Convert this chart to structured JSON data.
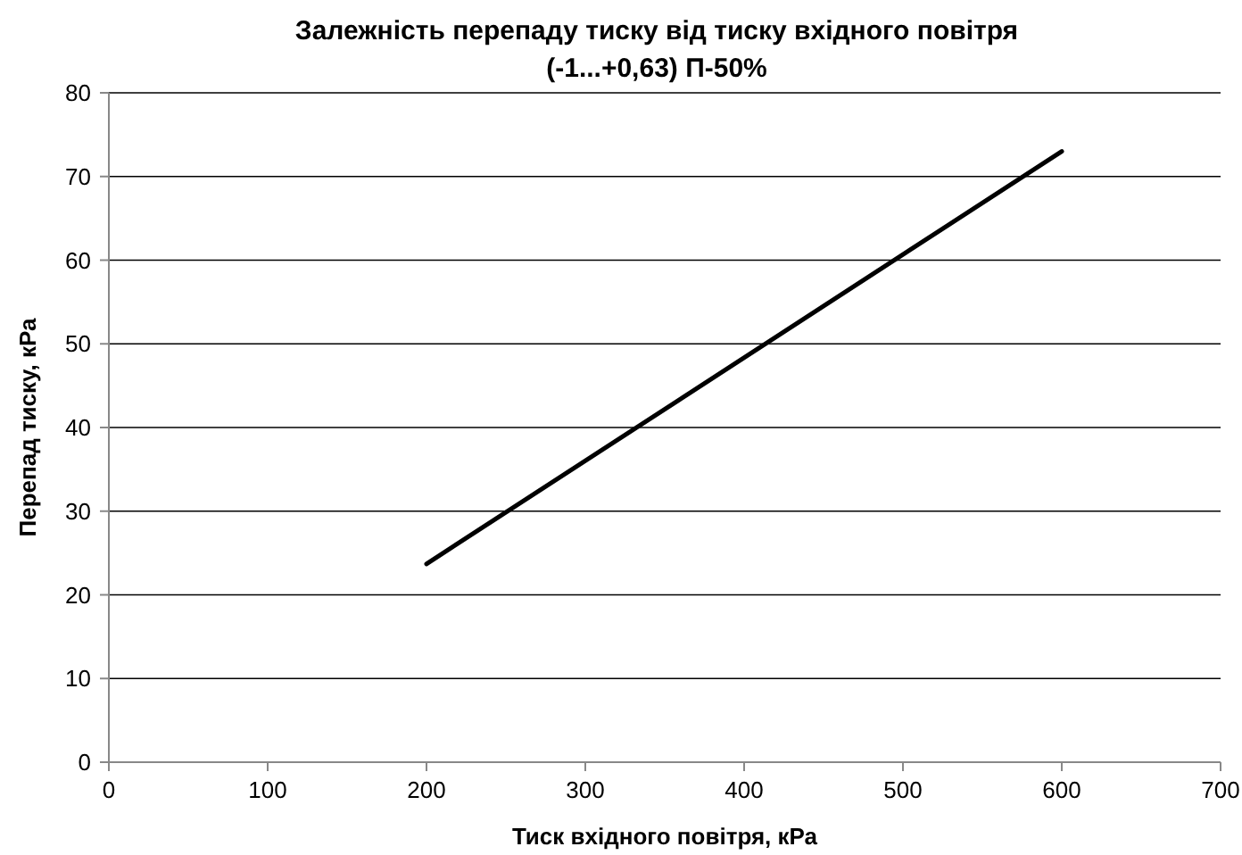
{
  "chart_data": {
    "type": "line",
    "title": "Залежність перепаду тиску від тиску вхідного повітря\n(-1...+0,63) П-50%",
    "xlabel": "Тиск вхідного повітря, кРа",
    "ylabel": "Перепад тиску, кРа",
    "x": [
      200,
      600
    ],
    "series": [
      {
        "color": "#000000",
        "values": [
          23.7,
          73
        ]
      }
    ],
    "xlim": [
      0,
      700
    ],
    "xticks": [
      0,
      100,
      200,
      300,
      400,
      500,
      600,
      700
    ],
    "ylim": [
      0,
      80
    ],
    "yticks": [
      0,
      10,
      20,
      30,
      40,
      50,
      60,
      70,
      80
    ],
    "grid": "y",
    "marker": "none",
    "line_style": "solid"
  }
}
